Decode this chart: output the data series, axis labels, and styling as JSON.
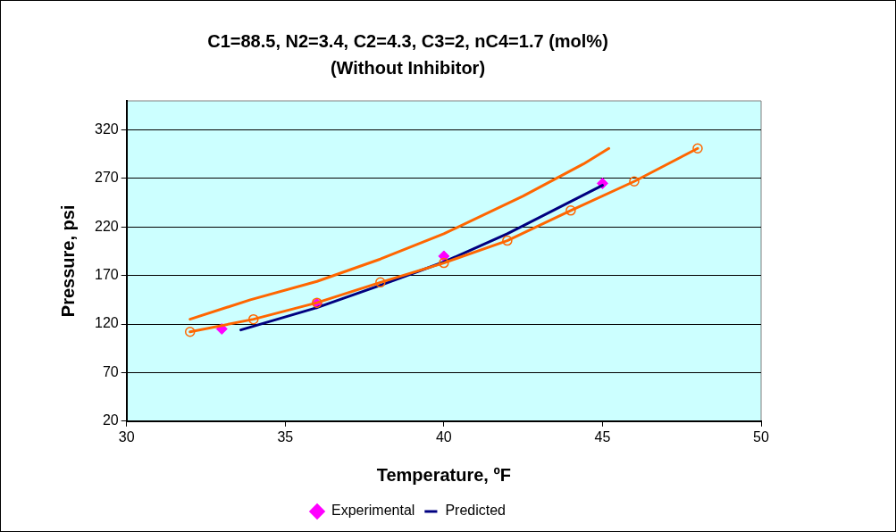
{
  "chart_data": {
    "type": "line",
    "title": "C1=88.5, N2=3.4, C2=4.3, C3=2, nC4=1.7 (mol%)",
    "subtitle": "(Without Inhibitor)",
    "xlabel": "Temperature, ºF",
    "ylabel": "Pressure, psi",
    "xlim": [
      30,
      50
    ],
    "xticks": [
      30,
      35,
      40,
      45,
      50
    ],
    "ylim": [
      20,
      350
    ],
    "yticks": [
      20,
      70,
      120,
      170,
      220,
      270,
      320
    ],
    "grid": "y",
    "legend": "bottom",
    "series": [
      {
        "name": "Experimental",
        "type": "scatter",
        "marker": "diamond",
        "color": "#ff00ff",
        "x": [
          33,
          36,
          40,
          45
        ],
        "values": [
          115,
          141,
          190,
          265
        ]
      },
      {
        "name": "Predicted",
        "type": "line",
        "marker": "none",
        "color": "#000080",
        "x": [
          33.6,
          36,
          38,
          40,
          42,
          45
        ],
        "values": [
          114,
          137,
          160,
          184,
          213,
          263
        ]
      },
      {
        "type": "line",
        "marker": "none",
        "color": "#ff6600",
        "x": [
          32,
          33.9,
          36,
          38,
          40,
          42.5,
          44.4,
          45.2
        ],
        "values": [
          125,
          145,
          164,
          187,
          213,
          252,
          285,
          301
        ]
      },
      {
        "type": "line",
        "marker": "circle",
        "color": "#ff6600",
        "x": [
          32,
          34,
          36,
          38,
          40,
          42,
          44,
          46,
          48
        ],
        "values": [
          112,
          125,
          142,
          163,
          183,
          206,
          237,
          267,
          301
        ]
      }
    ]
  }
}
